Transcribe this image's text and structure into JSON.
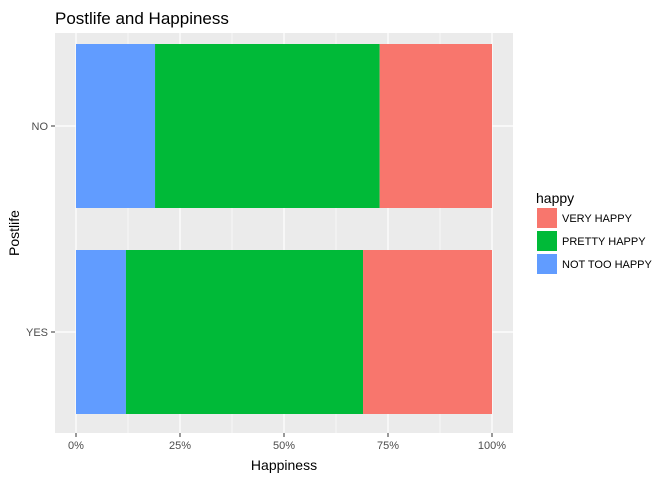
{
  "chart_data": {
    "type": "bar",
    "orientation": "horizontal",
    "stacked": "percent",
    "title": "Postlife and Happiness",
    "xlabel": "Happiness",
    "ylabel": "Postlife",
    "categories": [
      "NO",
      "YES"
    ],
    "xlim": [
      0,
      1
    ],
    "x_ticks": [
      0,
      0.25,
      0.5,
      0.75,
      1
    ],
    "x_tick_labels": [
      "0%",
      "25%",
      "50%",
      "75%",
      "100%"
    ],
    "grid": true,
    "legend": {
      "title": "happy",
      "position": "right"
    },
    "series": [
      {
        "name": "NOT TOO HAPPY",
        "color": "#619CFF",
        "values": [
          0.19,
          0.12
        ]
      },
      {
        "name": "PRETTY HAPPY",
        "color": "#00BA38",
        "values": [
          0.54,
          0.57
        ]
      },
      {
        "name": "VERY HAPPY",
        "color": "#F8766D",
        "values": [
          0.27,
          0.31
        ]
      }
    ],
    "legend_order": [
      "VERY HAPPY",
      "PRETTY HAPPY",
      "NOT TOO HAPPY"
    ]
  }
}
